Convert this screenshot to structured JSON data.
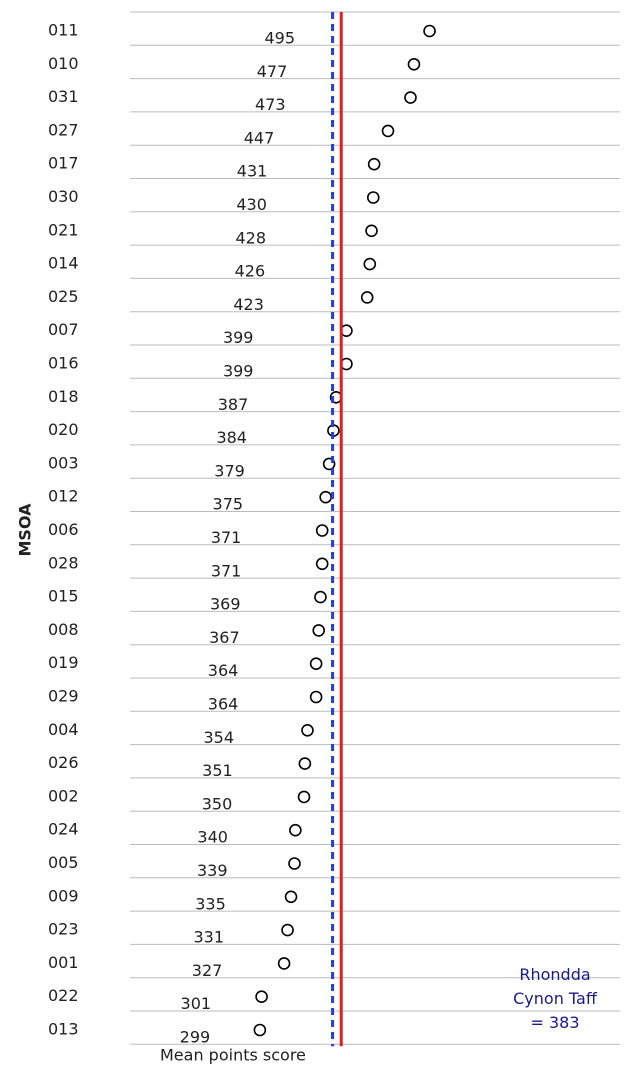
{
  "chart_data": {
    "type": "dot",
    "y_axis_label": "MSOA",
    "x_axis_label": "Mean points score",
    "categories": [
      "011",
      "010",
      "031",
      "027",
      "017",
      "030",
      "021",
      "014",
      "025",
      "007",
      "016",
      "018",
      "020",
      "003",
      "012",
      "006",
      "028",
      "015",
      "008",
      "019",
      "029",
      "004",
      "026",
      "002",
      "024",
      "005",
      "009",
      "023",
      "001",
      "022",
      "013"
    ],
    "values": [
      495,
      477,
      473,
      447,
      431,
      430,
      428,
      426,
      423,
      399,
      399,
      387,
      384,
      379,
      375,
      371,
      371,
      369,
      367,
      364,
      364,
      354,
      351,
      350,
      340,
      339,
      335,
      331,
      327,
      301,
      299
    ],
    "color": "#000000",
    "xlim": [
      149,
      715
    ],
    "reference_lines": [
      {
        "value": 383,
        "color": "#1f3fe0",
        "style": "dashed",
        "label": "Rhondda Cynon Taff = 383"
      },
      {
        "value": 393,
        "color": "#e02020",
        "style": "solid"
      }
    ]
  }
}
